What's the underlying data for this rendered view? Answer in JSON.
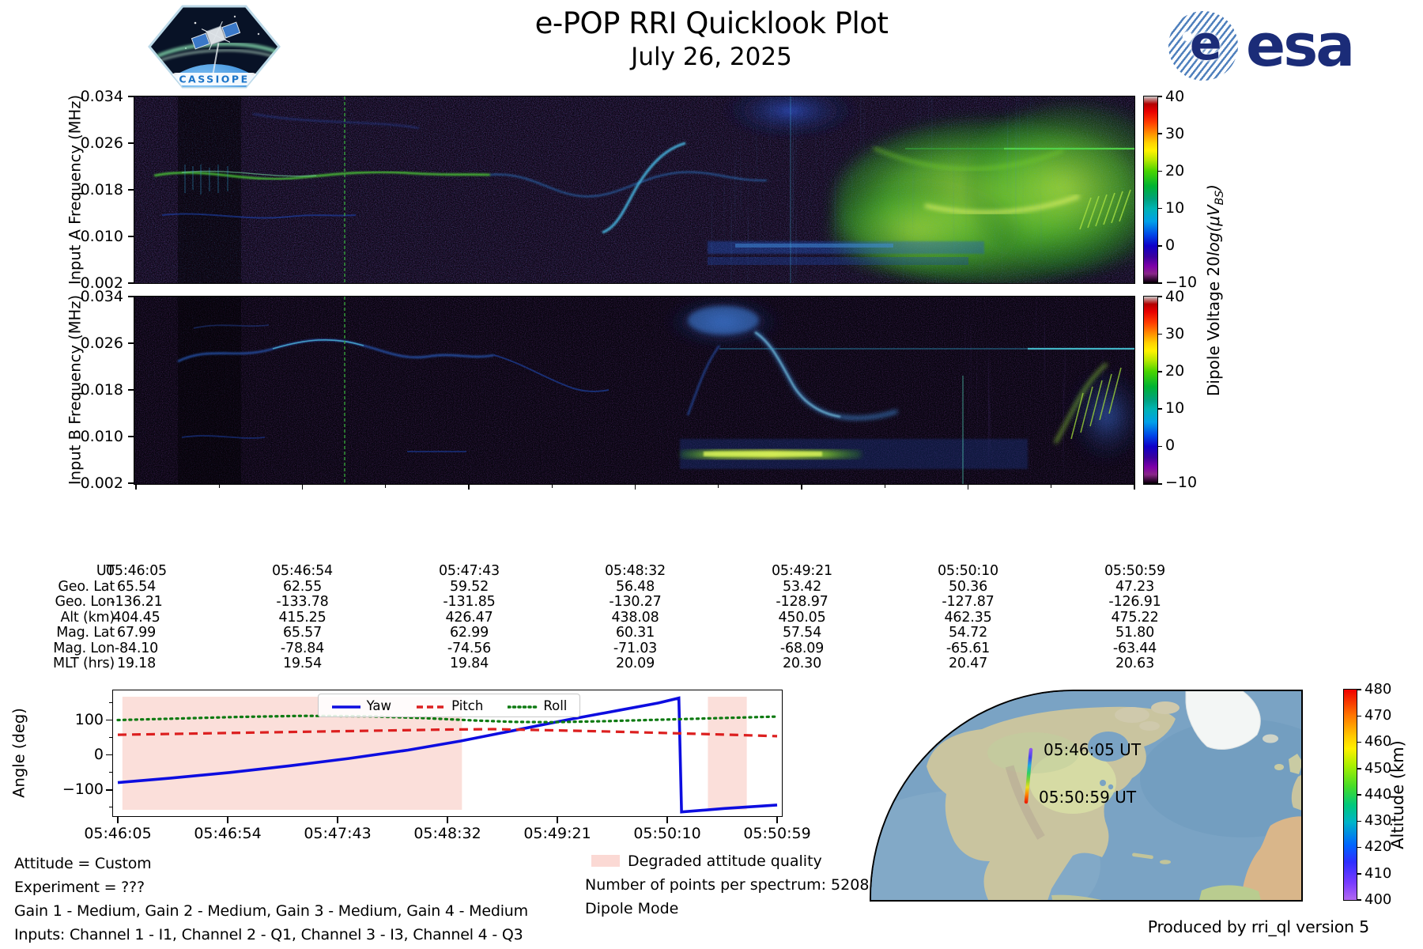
{
  "ui": {
    "header": {
      "title": "e-POP RRI Quicklook Plot",
      "date": "July 26, 2025",
      "cassiope_label": "CASSIOPE",
      "esa_label": "esa",
      "esa_globe_e": "e"
    },
    "colorbar_label": {
      "prefix": "Dipole Voltage 20",
      "math": "log(μV",
      "sub": "BS",
      "suffix": ")"
    },
    "annotations": {
      "degraded": "Degraded attitude quality",
      "points": "Number of points per spectrum: 5208",
      "dipole": "Dipole Mode"
    },
    "footer": {
      "attitude": "Attitude = Custom",
      "experiment": "Experiment = ???",
      "gain": "Gain 1 - Medium, Gain 2 - Medium, Gain 3 - Medium, Gain 4 - Medium",
      "inputs": "Inputs: Channel 1 - I1, Channel 2 - Q1, Channel 3 - I3, Channel 4 - Q3"
    },
    "produced_by": "Produced by rri_ql version 5"
  },
  "chart_data": [
    {
      "id": "spectrogram_a",
      "type": "heatmap",
      "ylabel": "Input A Frequency (MHz)",
      "y_tick_labels": [
        "0.034",
        "0.026",
        "0.018",
        "0.010",
        "0.002"
      ],
      "ylim_mhz": [
        0.002,
        0.034
      ],
      "x_ticks": [
        "05:46:05",
        "05:46:54",
        "05:47:43",
        "05:48:32",
        "05:49:21",
        "05:50:10",
        "05:50:59"
      ],
      "colorbar": {
        "label": "Dipole Voltage 20log(μV_BS)",
        "ticks": [
          "40",
          "30",
          "20",
          "10",
          "0",
          "−10"
        ],
        "range": [
          -10,
          40
        ],
        "colormap": "nipy_spectral"
      },
      "features": [
        "dense blue speckle noise on near-black background",
        "green wavy narrowband trace near 0.020 MHz across left half",
        "rising cyan trace near 05:48:20 from 0.008 to 0.026 MHz",
        "dark column with vertical comb lines near 05:46:20",
        "bright green-yellow emission region from ~05:49:40 to 05:50:59 spanning 0.004-0.028 MHz",
        "thin green horizontal line near 0.025 MHz on the right",
        "vertical green dashed line near 05:46:58",
        "blue speckled interference band near 0.008-0.010 MHz right of center"
      ]
    },
    {
      "id": "spectrogram_b",
      "type": "heatmap",
      "ylabel": "Input B Frequency (MHz)",
      "y_tick_labels": [
        "0.034",
        "0.026",
        "0.018",
        "0.010",
        "0.002"
      ],
      "ylim_mhz": [
        0.002,
        0.034
      ],
      "x_ticks": [
        "05:46:05",
        "05:46:54",
        "05:47:43",
        "05:48:32",
        "05:49:21",
        "05:50:10",
        "05:50:59"
      ],
      "colorbar": {
        "label": "Dipole Voltage 20log(μV_BS)",
        "ticks": [
          "40",
          "30",
          "20",
          "10",
          "0",
          "−10"
        ],
        "range": [
          -10,
          40
        ],
        "colormap": "nipy_spectral"
      },
      "features": [
        "darker speckle noise than input A",
        "blue wavy trace near 0.026 MHz across left half",
        "bright blue blob with descending swoosh near 05:48:30-05:49:00 between 0.010 and 0.034 MHz",
        "bright green-yellow horizontal band near 0.0075 MHz from ~05:48:55 to 05:49:50",
        "thin cyan horizontal line near 0.025 MHz across right half",
        "green slanted streaks rising at far right edge",
        "vertical green dashed line near 05:46:58"
      ]
    },
    {
      "id": "ephemeris_table",
      "type": "table",
      "rows": [
        {
          "label": "UT",
          "values": [
            "05:46:05",
            "05:46:54",
            "05:47:43",
            "05:48:32",
            "05:49:21",
            "05:50:10",
            "05:50:59"
          ]
        },
        {
          "label": "Geo. Lat",
          "values": [
            "65.54",
            "62.55",
            "59.52",
            "56.48",
            "53.42",
            "50.36",
            "47.23"
          ]
        },
        {
          "label": "Geo. Lon",
          "values": [
            "-136.21",
            "-133.78",
            "-131.85",
            "-130.27",
            "-128.97",
            "-127.87",
            "-126.91"
          ]
        },
        {
          "label": "Alt (km)",
          "values": [
            "404.45",
            "415.25",
            "426.47",
            "438.08",
            "450.05",
            "462.35",
            "475.22"
          ]
        },
        {
          "label": "Mag. Lat",
          "values": [
            "67.99",
            "65.57",
            "62.99",
            "60.31",
            "57.54",
            "54.72",
            "51.80"
          ]
        },
        {
          "label": "Mag. Lon",
          "values": [
            "-84.10",
            "-78.84",
            "-74.56",
            "-71.03",
            "-68.09",
            "-65.61",
            "-63.44"
          ]
        },
        {
          "label": "MLT (hrs)",
          "values": [
            "19.18",
            "19.54",
            "19.84",
            "20.09",
            "20.30",
            "20.47",
            "20.63"
          ]
        }
      ]
    },
    {
      "id": "attitude",
      "type": "line",
      "ylabel": "Angle (deg)",
      "y_ticks": [
        "100",
        "0",
        "−100"
      ],
      "ylim": [
        -175,
        185
      ],
      "x_ticks": [
        "05:46:05",
        "05:46:54",
        "05:47:43",
        "05:48:32",
        "05:49:21",
        "05:50:10",
        "05:50:59"
      ],
      "legend_labels": [
        "Yaw",
        "Pitch",
        "Roll"
      ],
      "degraded_color": "#fbdfda",
      "degraded_regions": [
        [
          0.007,
          0.522
        ],
        [
          0.895,
          0.954
        ]
      ],
      "series": [
        {
          "name": "Yaw",
          "color": "#0d0de0",
          "style": "solid",
          "width": 3.6,
          "points": [
            [
              0,
              -79
            ],
            [
              0.08,
              -66
            ],
            [
              0.17,
              -50
            ],
            [
              0.26,
              -31
            ],
            [
              0.35,
              -10
            ],
            [
              0.44,
              14
            ],
            [
              0.52,
              40
            ],
            [
              0.6,
              70
            ],
            [
              0.68,
              100
            ],
            [
              0.76,
              128
            ],
            [
              0.82,
              149
            ],
            [
              0.851,
              163
            ],
            [
              0.855,
              -163
            ],
            [
              0.92,
              -153
            ],
            [
              1,
              -143
            ]
          ]
        },
        {
          "name": "Pitch",
          "color": "#dc1f1f",
          "style": "dashed",
          "width": 3.2,
          "points": [
            [
              0,
              58
            ],
            [
              0.1,
              61
            ],
            [
              0.2,
              64
            ],
            [
              0.3,
              67
            ],
            [
              0.4,
              70
            ],
            [
              0.5,
              73
            ],
            [
              0.57,
              74
            ],
            [
              0.65,
              71
            ],
            [
              0.75,
              67
            ],
            [
              0.85,
              62
            ],
            [
              0.93,
              58
            ],
            [
              1,
              54
            ]
          ]
        },
        {
          "name": "Roll",
          "color": "#0e7a12",
          "style": "dotted",
          "width": 3.2,
          "points": [
            [
              0,
              100
            ],
            [
              0.08,
              104
            ],
            [
              0.18,
              109
            ],
            [
              0.28,
              112
            ],
            [
              0.38,
              111
            ],
            [
              0.46,
              106
            ],
            [
              0.54,
              99
            ],
            [
              0.6,
              95
            ],
            [
              0.66,
              94
            ],
            [
              0.74,
              97
            ],
            [
              0.82,
              101
            ],
            [
              0.9,
              105
            ],
            [
              1,
              110
            ]
          ]
        }
      ]
    },
    {
      "id": "ground_track",
      "type": "map",
      "region": "North America and North Atlantic",
      "start_label": "05:46:05 UT",
      "end_label": "05:50:59 UT",
      "track_start": {
        "time": "05:46:05",
        "alt_km": 404.45
      },
      "track_end": {
        "time": "05:50:59",
        "alt_km": 475.22
      },
      "colors": {
        "ocean": "#7aa3c4",
        "land": "#c9c49f",
        "ice": "#f3f6f5"
      },
      "colorbar": {
        "label": "Altitude (km)",
        "ticks": [
          "480",
          "470",
          "460",
          "450",
          "440",
          "430",
          "420",
          "410",
          "400"
        ],
        "range": [
          400,
          480
        ],
        "colormap": "rainbow"
      }
    }
  ]
}
